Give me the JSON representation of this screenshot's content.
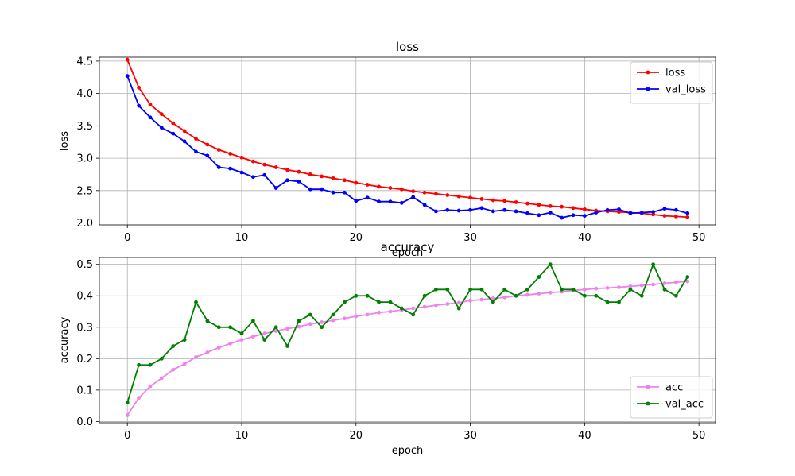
{
  "chart_data": [
    {
      "type": "line",
      "title": "loss",
      "xlabel": "epoch",
      "ylabel": "loss",
      "xlim": [
        -2.45,
        51.45
      ],
      "ylim": [
        1.97,
        4.56
      ],
      "xticks": [
        "0",
        "10",
        "20",
        "30",
        "40",
        "50"
      ],
      "yticks": [
        "2.0",
        "2.5",
        "3.0",
        "3.5",
        "4.0",
        "4.5"
      ],
      "grid": true,
      "legend_position": "upper right",
      "x": [
        0,
        1,
        2,
        3,
        4,
        5,
        6,
        7,
        8,
        9,
        10,
        11,
        12,
        13,
        14,
        15,
        16,
        17,
        18,
        19,
        20,
        21,
        22,
        23,
        24,
        25,
        26,
        27,
        28,
        29,
        30,
        31,
        32,
        33,
        34,
        35,
        36,
        37,
        38,
        39,
        40,
        41,
        42,
        43,
        44,
        45,
        46,
        47,
        48,
        49
      ],
      "series": [
        {
          "name": "loss",
          "color": "#ff0000",
          "values": [
            4.52,
            4.09,
            3.83,
            3.68,
            3.54,
            3.42,
            3.3,
            3.21,
            3.13,
            3.07,
            3.01,
            2.95,
            2.9,
            2.86,
            2.82,
            2.79,
            2.75,
            2.72,
            2.69,
            2.66,
            2.62,
            2.59,
            2.56,
            2.54,
            2.52,
            2.49,
            2.47,
            2.45,
            2.43,
            2.41,
            2.39,
            2.37,
            2.35,
            2.34,
            2.32,
            2.3,
            2.28,
            2.26,
            2.25,
            2.23,
            2.21,
            2.19,
            2.18,
            2.17,
            2.16,
            2.15,
            2.13,
            2.11,
            2.1,
            2.09
          ]
        },
        {
          "name": "val_loss",
          "color": "#0000ff",
          "values": [
            4.27,
            3.81,
            3.63,
            3.47,
            3.38,
            3.26,
            3.1,
            3.04,
            2.86,
            2.84,
            2.78,
            2.71,
            2.74,
            2.54,
            2.66,
            2.64,
            2.52,
            2.52,
            2.47,
            2.47,
            2.34,
            2.39,
            2.33,
            2.33,
            2.31,
            2.4,
            2.28,
            2.18,
            2.2,
            2.19,
            2.2,
            2.23,
            2.18,
            2.2,
            2.18,
            2.15,
            2.12,
            2.16,
            2.08,
            2.12,
            2.11,
            2.16,
            2.2,
            2.21,
            2.15,
            2.16,
            2.17,
            2.22,
            2.2,
            2.15
          ]
        }
      ]
    },
    {
      "type": "line",
      "title": "accuracy",
      "xlabel": "epoch",
      "ylabel": "accuracy",
      "xlim": [
        -2.45,
        51.45
      ],
      "ylim": [
        -0.004,
        0.522
      ],
      "xticks": [
        "0",
        "10",
        "20",
        "30",
        "40",
        "50"
      ],
      "yticks": [
        "0.0",
        "0.1",
        "0.2",
        "0.3",
        "0.4",
        "0.5"
      ],
      "grid": true,
      "legend_position": "lower right",
      "x": [
        0,
        1,
        2,
        3,
        4,
        5,
        6,
        7,
        8,
        9,
        10,
        11,
        12,
        13,
        14,
        15,
        16,
        17,
        18,
        19,
        20,
        21,
        22,
        23,
        24,
        25,
        26,
        27,
        28,
        29,
        30,
        31,
        32,
        33,
        34,
        35,
        36,
        37,
        38,
        39,
        40,
        41,
        42,
        43,
        44,
        45,
        46,
        47,
        48,
        49
      ],
      "series": [
        {
          "name": "acc",
          "color": "#ee82ee",
          "values": [
            0.02,
            0.075,
            0.112,
            0.138,
            0.165,
            0.183,
            0.205,
            0.22,
            0.235,
            0.248,
            0.26,
            0.27,
            0.28,
            0.288,
            0.295,
            0.302,
            0.31,
            0.316,
            0.322,
            0.328,
            0.335,
            0.34,
            0.347,
            0.35,
            0.355,
            0.36,
            0.365,
            0.37,
            0.374,
            0.378,
            0.385,
            0.388,
            0.392,
            0.395,
            0.4,
            0.403,
            0.407,
            0.41,
            0.413,
            0.417,
            0.42,
            0.423,
            0.425,
            0.427,
            0.43,
            0.433,
            0.436,
            0.44,
            0.443,
            0.446
          ]
        },
        {
          "name": "val_acc",
          "color": "#008000",
          "values": [
            0.06,
            0.18,
            0.18,
            0.2,
            0.24,
            0.26,
            0.38,
            0.32,
            0.3,
            0.3,
            0.28,
            0.32,
            0.26,
            0.3,
            0.24,
            0.32,
            0.34,
            0.3,
            0.34,
            0.38,
            0.4,
            0.4,
            0.38,
            0.38,
            0.36,
            0.34,
            0.4,
            0.42,
            0.42,
            0.36,
            0.42,
            0.42,
            0.38,
            0.42,
            0.4,
            0.42,
            0.46,
            0.5,
            0.42,
            0.42,
            0.4,
            0.4,
            0.38,
            0.38,
            0.42,
            0.4,
            0.5,
            0.42,
            0.4,
            0.46
          ]
        }
      ]
    }
  ]
}
